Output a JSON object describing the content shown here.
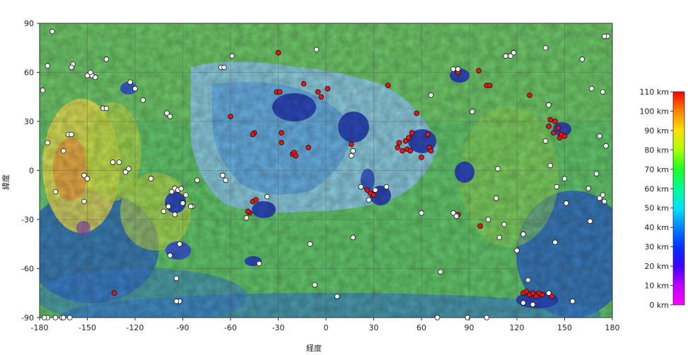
{
  "map": {
    "xlabel": "経度",
    "ylabel": "緯度",
    "x_ticks": [
      "-180",
      "-150",
      "-120",
      "-90",
      "-60",
      "-30",
      "0",
      "30",
      "60",
      "90",
      "120",
      "150",
      "180"
    ],
    "y_ticks": [
      "90",
      "60",
      "30",
      "0",
      "-30",
      "-60",
      "-90"
    ],
    "lon_range": [
      -180,
      180
    ],
    "lat_range": [
      -90,
      90
    ],
    "grid": true,
    "colorbar": {
      "labels": [
        "110 km",
        "100 km",
        "90 km",
        "80 km",
        "70 km",
        "60 km",
        "50 km",
        "40 km",
        "30 km",
        "20 km",
        "10 km",
        "0 km"
      ],
      "values": [
        110,
        100,
        90,
        80,
        70,
        60,
        50,
        40,
        30,
        20,
        10,
        0
      ],
      "colors": [
        "#ff0000",
        "#ff8000",
        "#ffe000",
        "#b0ff00",
        "#20ff20",
        "#00ff90",
        "#00e0ff",
        "#0080ff",
        "#0030ff",
        "#4000ff",
        "#c000ff",
        "#ff00ff"
      ]
    },
    "marker_colors": {
      "red": "#ee1111",
      "white": "#ffffff"
    },
    "red_markers": [
      [
        -30,
        72
      ],
      [
        -31,
        48
      ],
      [
        -29,
        48
      ],
      [
        -14,
        53
      ],
      [
        -5,
        48
      ],
      [
        -3,
        45
      ],
      [
        1,
        50
      ],
      [
        39,
        52
      ],
      [
        -60,
        33
      ],
      [
        -45,
        23
      ],
      [
        -46,
        22
      ],
      [
        -28,
        23
      ],
      [
        -28,
        17
      ],
      [
        -21,
        10
      ],
      [
        -20,
        11
      ],
      [
        -19,
        9
      ],
      [
        -11,
        14
      ],
      [
        16,
        16
      ],
      [
        26,
        -12
      ],
      [
        28,
        -14
      ],
      [
        30,
        -15
      ],
      [
        -46,
        -19
      ],
      [
        -48,
        -26
      ],
      [
        -49,
        -25
      ],
      [
        -44,
        -18
      ],
      [
        45,
        14
      ],
      [
        46,
        17
      ],
      [
        48,
        12
      ],
      [
        50,
        18
      ],
      [
        52,
        20
      ],
      [
        54,
        23
      ],
      [
        51,
        13
      ],
      [
        53,
        12
      ],
      [
        57,
        35
      ],
      [
        60,
        8
      ],
      [
        64,
        22
      ],
      [
        65,
        14
      ],
      [
        66,
        12
      ],
      [
        83,
        60
      ],
      [
        96,
        61
      ],
      [
        101,
        52
      ],
      [
        103,
        52
      ],
      [
        128,
        46
      ],
      [
        140,
        27
      ],
      [
        141,
        31
      ],
      [
        143,
        23
      ],
      [
        144,
        30
      ],
      [
        146,
        26
      ],
      [
        147,
        20
      ],
      [
        148,
        22
      ],
      [
        150,
        21
      ],
      [
        83,
        -27
      ],
      [
        97,
        -34
      ],
      [
        -133,
        -75
      ],
      [
        124,
        -75
      ],
      [
        126,
        -74
      ],
      [
        128,
        -76
      ],
      [
        130,
        -75
      ],
      [
        132,
        -77
      ],
      [
        134,
        -75
      ],
      [
        136,
        -76
      ],
      [
        142,
        -77
      ]
    ],
    "white_markers": [
      [
        -172,
        85
      ],
      [
        -175,
        64
      ],
      [
        -159,
        65
      ],
      [
        -160,
        63
      ],
      [
        -150,
        58
      ],
      [
        -147,
        58
      ],
      [
        -148,
        60
      ],
      [
        -145,
        57
      ],
      [
        -138,
        68
      ],
      [
        -123,
        54
      ],
      [
        -120,
        50
      ],
      [
        -115,
        43
      ],
      [
        -140,
        38
      ],
      [
        -138,
        38
      ],
      [
        -162,
        22
      ],
      [
        -160,
        22
      ],
      [
        -175,
        17
      ],
      [
        -165,
        12
      ],
      [
        -152,
        -3
      ],
      [
        -150,
        -5
      ],
      [
        -134,
        5
      ],
      [
        -130,
        5
      ],
      [
        -124,
        1
      ],
      [
        -126,
        -1
      ],
      [
        -170,
        -13
      ],
      [
        -110,
        -5
      ],
      [
        -100,
        35
      ],
      [
        -98,
        33
      ],
      [
        -95,
        -11
      ],
      [
        -93,
        -12
      ],
      [
        -91,
        -11
      ],
      [
        -97,
        -13
      ],
      [
        -88,
        -15
      ],
      [
        -90,
        -20
      ],
      [
        -99,
        -22
      ],
      [
        -102,
        -25
      ],
      [
        -95,
        -27
      ],
      [
        -84,
        -22
      ],
      [
        -85,
        -22
      ],
      [
        -81,
        -6
      ],
      [
        -65,
        -3
      ],
      [
        -63,
        -6
      ],
      [
        -66,
        63
      ],
      [
        -64,
        63
      ],
      [
        -59,
        70
      ],
      [
        -37,
        -16
      ],
      [
        -42,
        -57
      ],
      [
        -50,
        -29
      ],
      [
        -10,
        -45
      ],
      [
        -7,
        -70
      ],
      [
        7,
        -77
      ],
      [
        17,
        12
      ],
      [
        16,
        9
      ],
      [
        22,
        -10
      ],
      [
        27,
        -18
      ],
      [
        31,
        -12
      ],
      [
        17,
        -41
      ],
      [
        -6,
        74
      ],
      [
        66,
        46
      ],
      [
        60,
        -26
      ],
      [
        72,
        -62
      ],
      [
        80,
        62
      ],
      [
        83,
        62
      ],
      [
        80,
        -26
      ],
      [
        82,
        -28
      ],
      [
        92,
        36
      ],
      [
        108,
        1
      ],
      [
        107,
        -17
      ],
      [
        102,
        -30
      ],
      [
        112,
        -33
      ],
      [
        109,
        -41
      ],
      [
        120,
        -49
      ],
      [
        124,
        -39
      ],
      [
        127,
        -67
      ],
      [
        113,
        70
      ],
      [
        118,
        72
      ],
      [
        116,
        70
      ],
      [
        138,
        75
      ],
      [
        138,
        18
      ],
      [
        140,
        40
      ],
      [
        141,
        3
      ],
      [
        145,
        -10
      ],
      [
        144,
        -44
      ],
      [
        150,
        -5
      ],
      [
        151,
        -20
      ],
      [
        155,
        -80
      ],
      [
        161,
        68
      ],
      [
        165,
        -11
      ],
      [
        170,
        -2
      ],
      [
        166,
        -31
      ],
      [
        172,
        -17
      ],
      [
        174,
        -15
      ],
      [
        175,
        -19
      ],
      [
        172,
        21
      ],
      [
        176,
        15
      ],
      [
        174,
        48
      ],
      [
        167,
        50
      ],
      [
        177,
        82
      ],
      [
        175,
        82
      ],
      [
        -161,
        -90
      ],
      [
        -170,
        -90
      ],
      [
        -166,
        -90
      ],
      [
        -175,
        -90
      ],
      [
        -177,
        -90
      ],
      [
        -165,
        -90
      ],
      [
        70,
        -90
      ],
      [
        89,
        -90
      ],
      [
        101,
        -90
      ],
      [
        124,
        -81
      ],
      [
        130,
        -82
      ],
      [
        140,
        -75
      ],
      [
        -92,
        -45
      ],
      [
        -98,
        -52
      ],
      [
        -94,
        -66
      ],
      [
        -92,
        -80
      ],
      [
        -94,
        -80
      ],
      [
        -152,
        -19
      ],
      [
        -178,
        49
      ],
      [
        38,
        -10
      ]
    ]
  }
}
